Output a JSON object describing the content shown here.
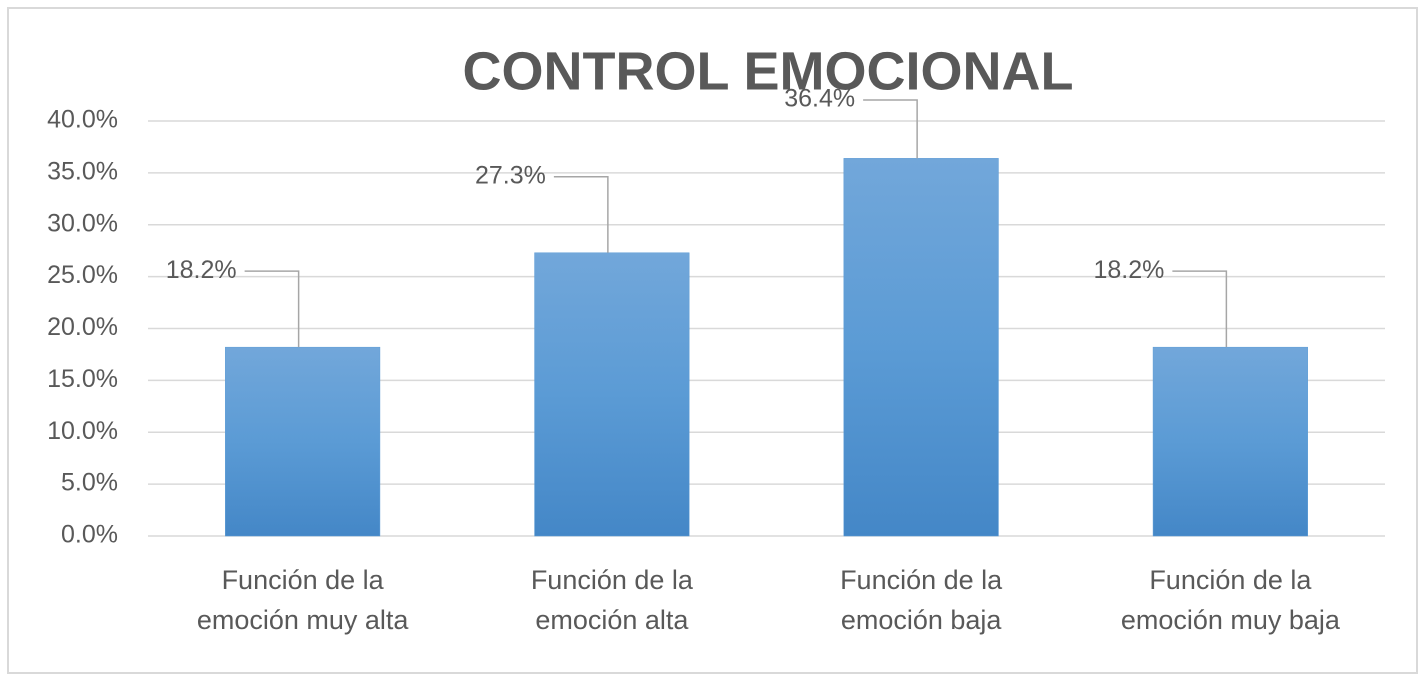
{
  "chart_data": {
    "type": "bar",
    "title": "CONTROL EMOCIONAL",
    "categories": [
      [
        "Función de la",
        "emoción muy alta"
      ],
      [
        "Función de la",
        "emoción alta"
      ],
      [
        "Función de la",
        "emoción baja"
      ],
      [
        "Función de la",
        "emoción muy baja"
      ]
    ],
    "values": [
      18.2,
      27.3,
      36.4,
      18.2
    ],
    "value_labels": [
      "18.2%",
      "27.3%",
      "36.4%",
      "18.2%"
    ],
    "color": "#5b9bd5",
    "ylim": [
      0,
      40
    ],
    "yticks": [
      {
        "value": 0,
        "label": "0.0%"
      },
      {
        "value": 5,
        "label": "5.0%"
      },
      {
        "value": 10,
        "label": "10.0%"
      },
      {
        "value": 15,
        "label": "15.0%"
      },
      {
        "value": 20,
        "label": "20.0%"
      },
      {
        "value": 25,
        "label": "25.0%"
      },
      {
        "value": 30,
        "label": "30.0%"
      },
      {
        "value": 35,
        "label": "35.0%"
      },
      {
        "value": 40,
        "label": "40.0%"
      }
    ],
    "grid": true
  }
}
